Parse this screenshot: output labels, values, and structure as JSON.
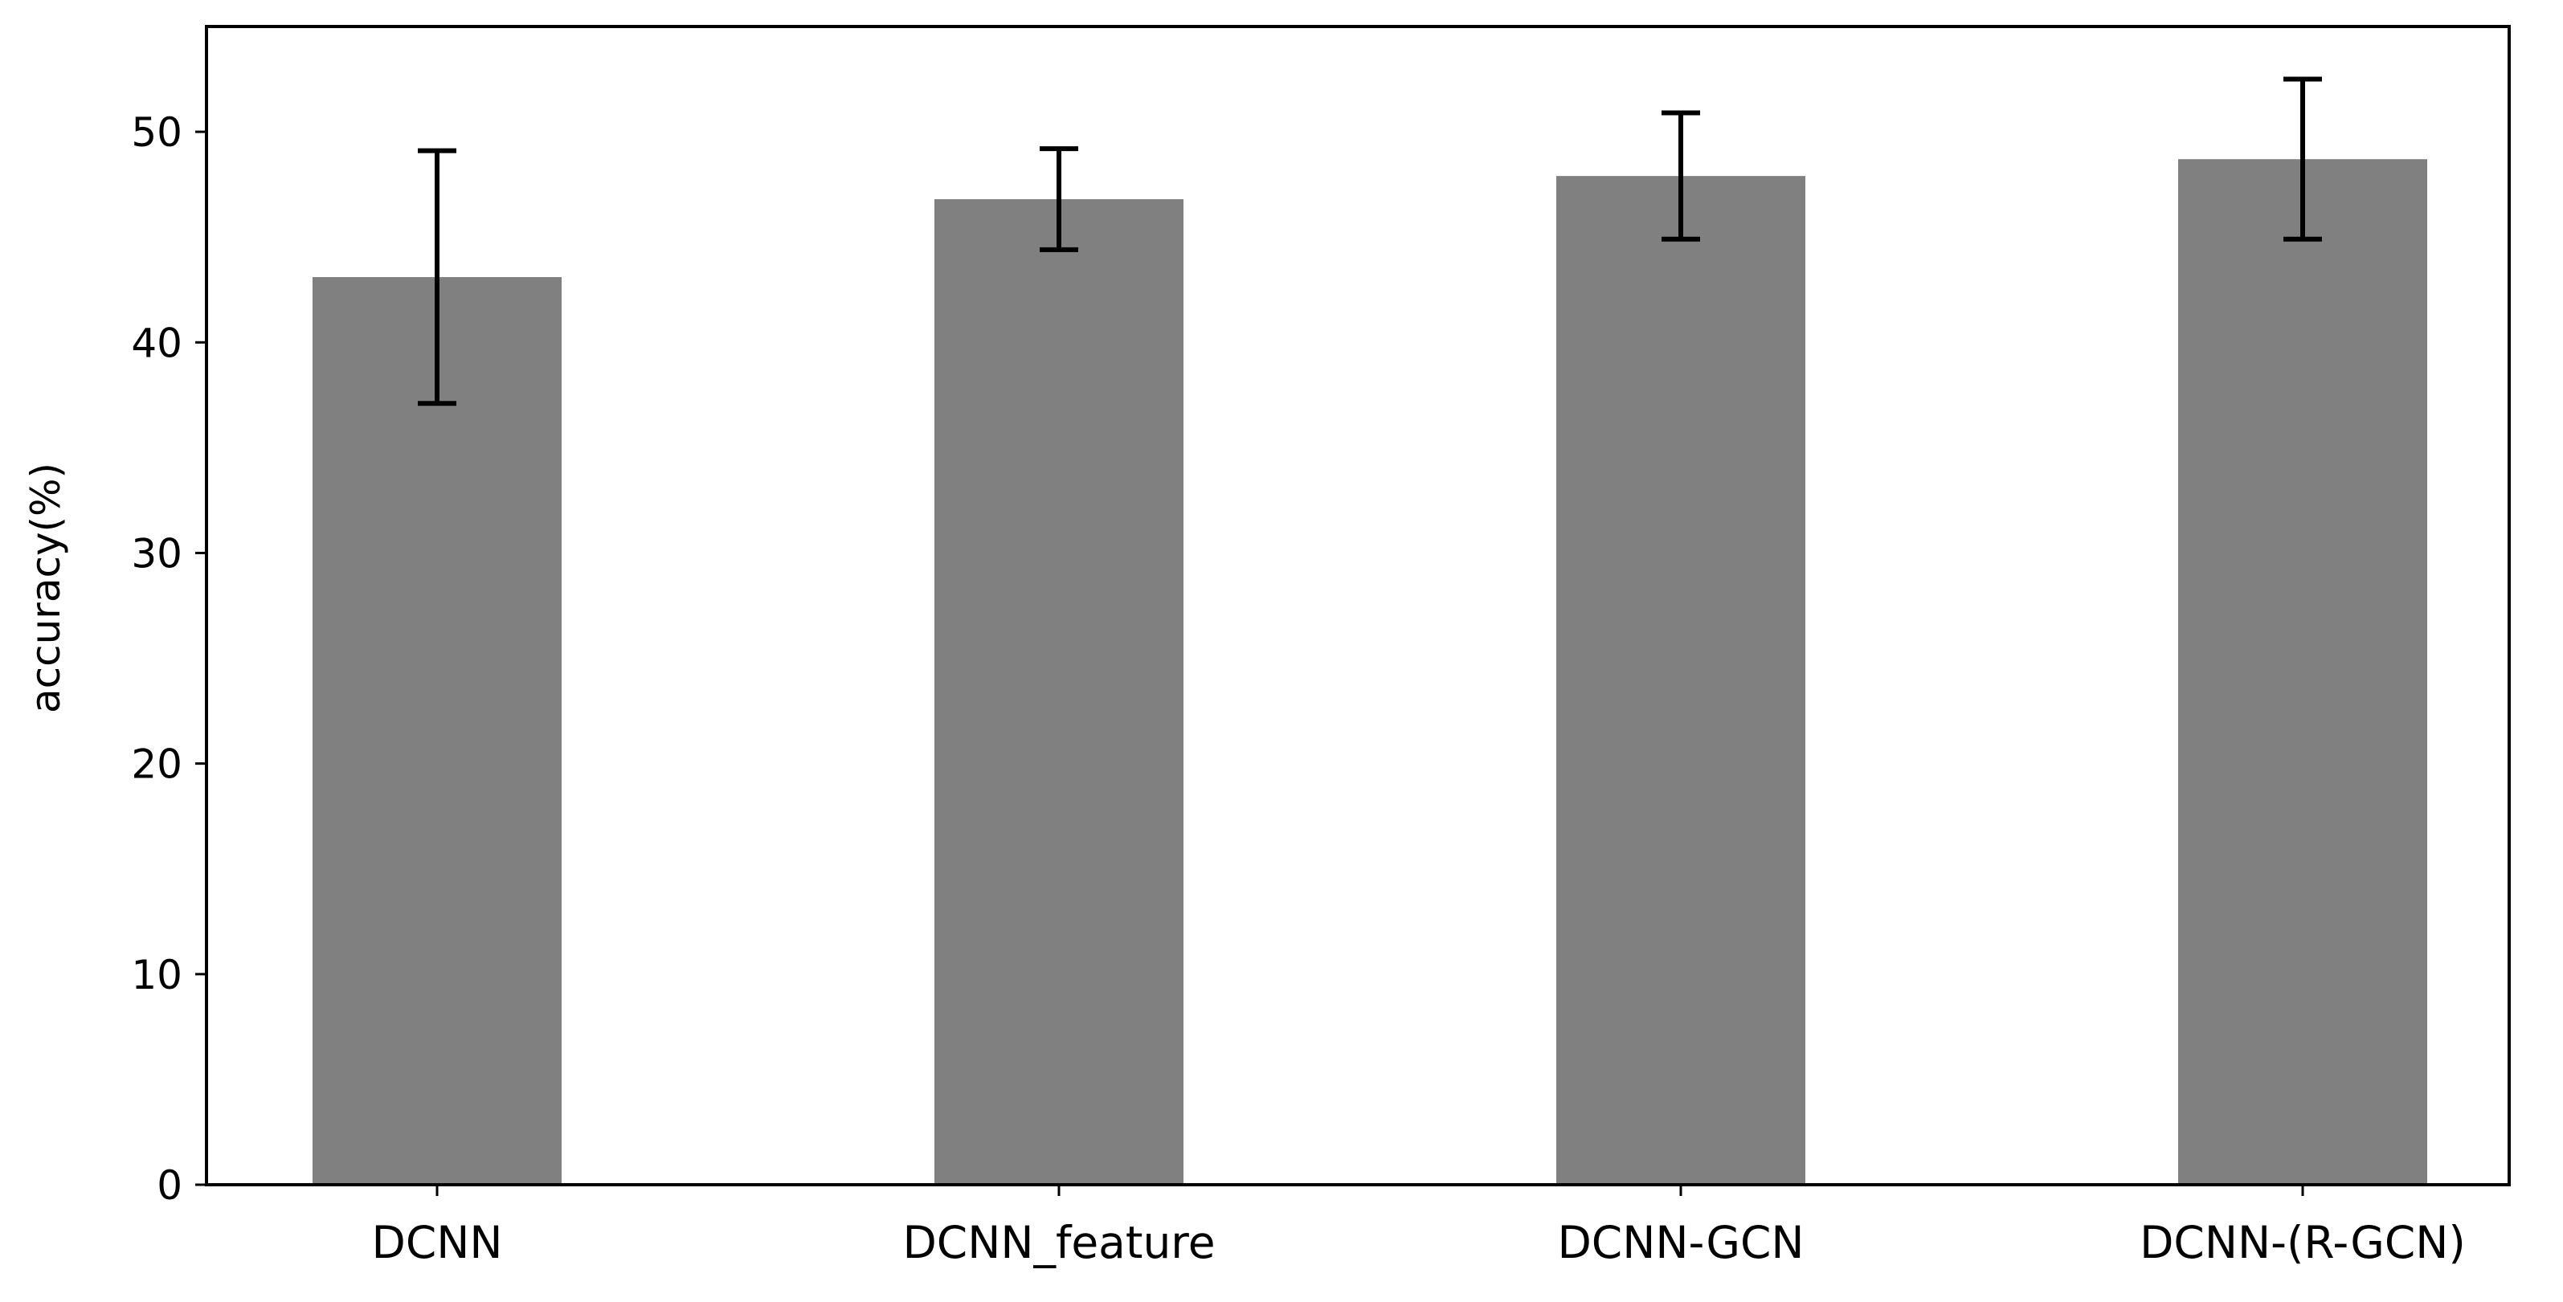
{
  "chart_data": {
    "type": "bar",
    "title": "",
    "xlabel": "",
    "ylabel": "accuracy(%)",
    "categories": [
      "DCNN",
      "DCNN_feature",
      "DCNN-GCN",
      "DCNN-(R-GCN)"
    ],
    "values": [
      43.1,
      46.8,
      47.9,
      48.7
    ],
    "error_low": [
      37.1,
      44.4,
      44.9,
      44.9
    ],
    "error_high": [
      49.1,
      49.2,
      50.9,
      52.5
    ],
    "ylim": [
      0,
      55
    ],
    "yticks": [
      0,
      10,
      20,
      30,
      40,
      50
    ],
    "grid": false,
    "colors": {
      "bar": "#808080",
      "errorbar": "#000000",
      "axis": "#000000"
    }
  }
}
